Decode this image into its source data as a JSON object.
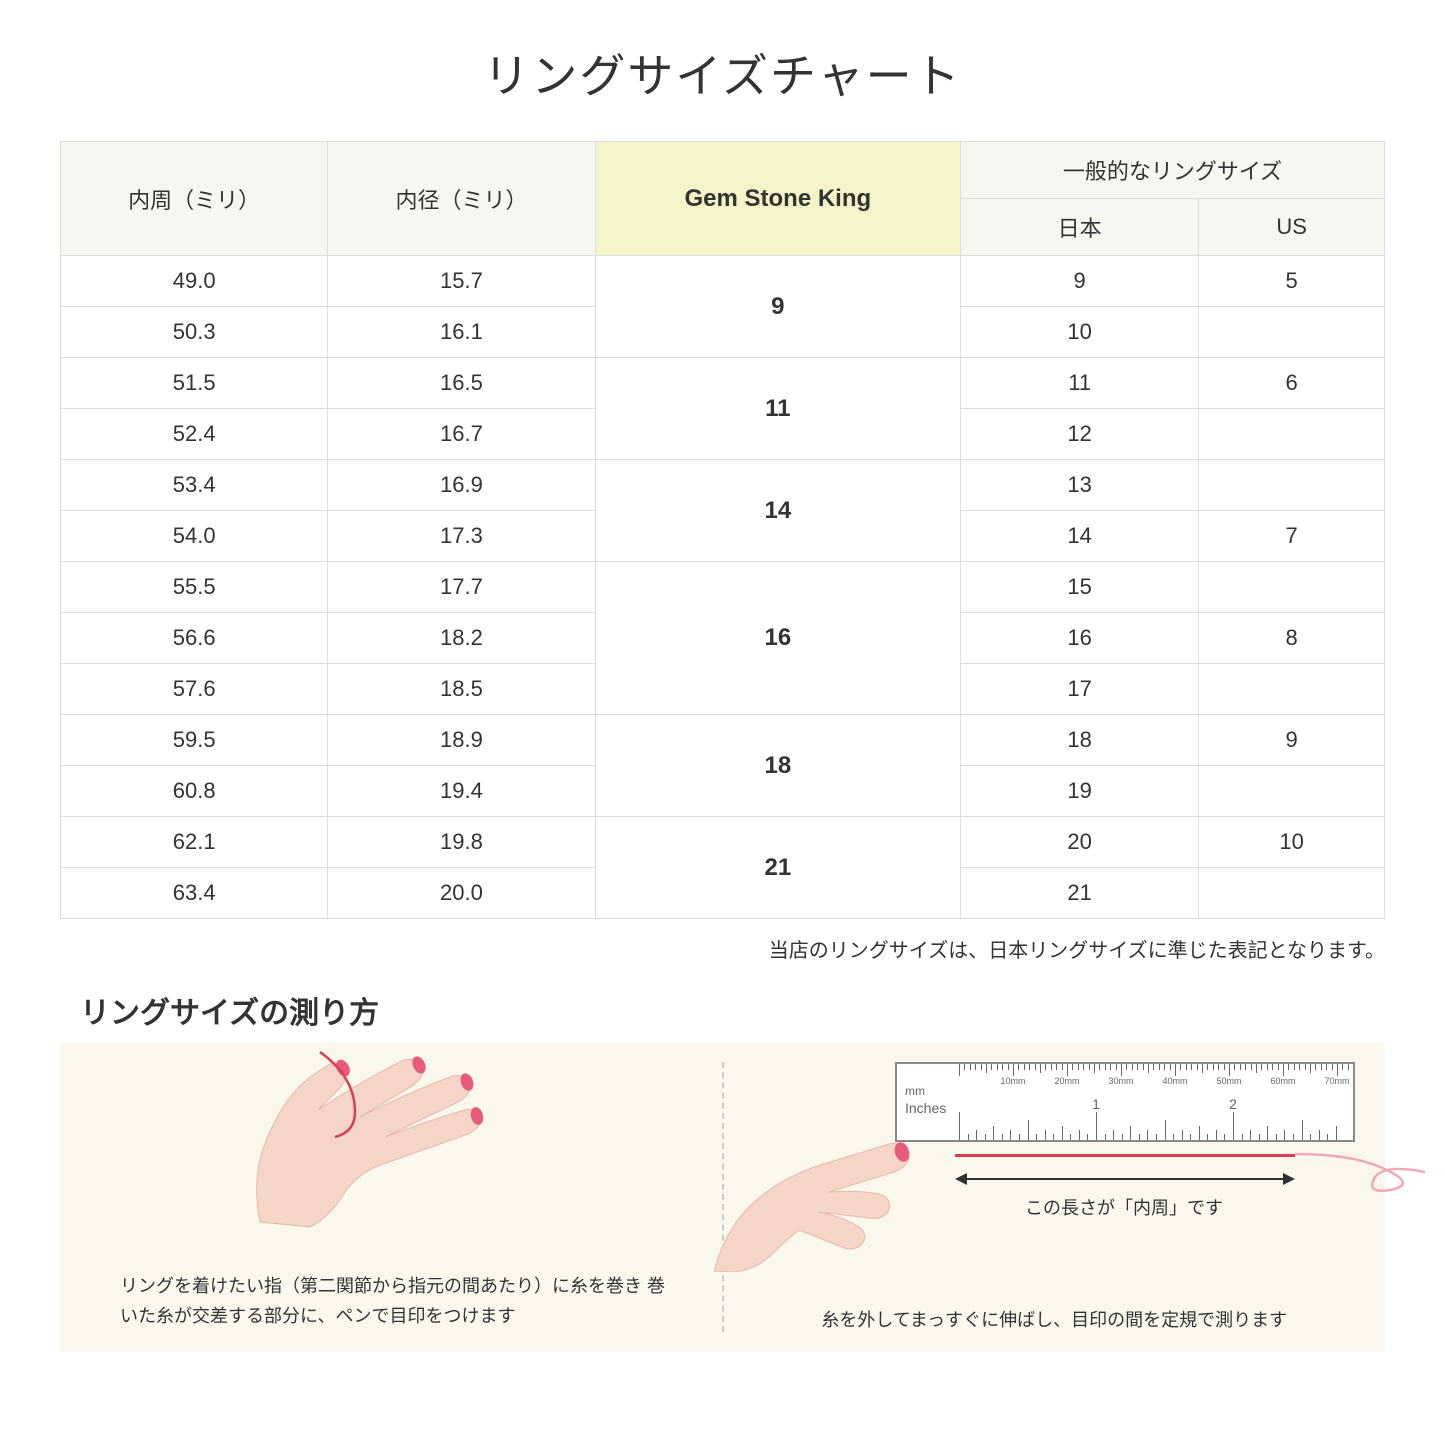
{
  "title": "リングサイズチャート",
  "headers": {
    "circumference": "内周（ミリ）",
    "diameter": "内径（ミリ）",
    "gsk": "Gem Stone King",
    "common": "一般的なリングサイズ",
    "jp": "日本",
    "us": "US"
  },
  "rows": [
    {
      "c": "49.0",
      "d": "15.7",
      "jp": "9",
      "us": "5"
    },
    {
      "c": "50.3",
      "d": "16.1",
      "jp": "10",
      "us": ""
    },
    {
      "c": "51.5",
      "d": "16.5",
      "jp": "11",
      "us": "6"
    },
    {
      "c": "52.4",
      "d": "16.7",
      "jp": "12",
      "us": ""
    },
    {
      "c": "53.4",
      "d": "16.9",
      "jp": "13",
      "us": ""
    },
    {
      "c": "54.0",
      "d": "17.3",
      "jp": "14",
      "us": "7"
    },
    {
      "c": "55.5",
      "d": "17.7",
      "jp": "15",
      "us": ""
    },
    {
      "c": "56.6",
      "d": "18.2",
      "jp": "16",
      "us": "8"
    },
    {
      "c": "57.6",
      "d": "18.5",
      "jp": "17",
      "us": ""
    },
    {
      "c": "59.5",
      "d": "18.9",
      "jp": "18",
      "us": "9"
    },
    {
      "c": "60.8",
      "d": "19.4",
      "jp": "19",
      "us": ""
    },
    {
      "c": "62.1",
      "d": "19.8",
      "jp": "20",
      "us": "10"
    },
    {
      "c": "63.4",
      "d": "20.0",
      "jp": "21",
      "us": ""
    }
  ],
  "gsk_groups": [
    {
      "span": 2,
      "val": "9"
    },
    {
      "span": 2,
      "val": "11"
    },
    {
      "span": 2,
      "val": "14"
    },
    {
      "span": 3,
      "val": "16"
    },
    {
      "span": 2,
      "val": "18"
    },
    {
      "span": 2,
      "val": "21"
    }
  ],
  "note": "当店のリングサイズは、日本リングサイズに準じた表記となります。",
  "measure": {
    "title": "リングサイズの測り方",
    "left_caption": "リングを着けたい指（第二関節から指元の間あたり）に糸を巻き\n巻いた糸が交差する部分に、ペンで目印をつけます",
    "right_caption": "糸を外してまっすぐに伸ばし、目印の間を定規で測ります",
    "arrow_caption": "この長さが「内周」です",
    "ruler_mm": "mm",
    "ruler_inches": "Inches",
    "mm_marks": [
      "10mm",
      "20mm",
      "30mm",
      "40mm",
      "50mm",
      "60mm",
      "70mm"
    ],
    "inch_marks": [
      "1",
      "2"
    ]
  },
  "colors": {
    "header_bg": "#f7f6f0",
    "highlight_bg": "#f5f4c8",
    "border": "#dddddd",
    "panel_bg": "#faf8ec",
    "skin": "#f5d5c8",
    "nail": "#e85a7a",
    "thread": "#d84050"
  }
}
